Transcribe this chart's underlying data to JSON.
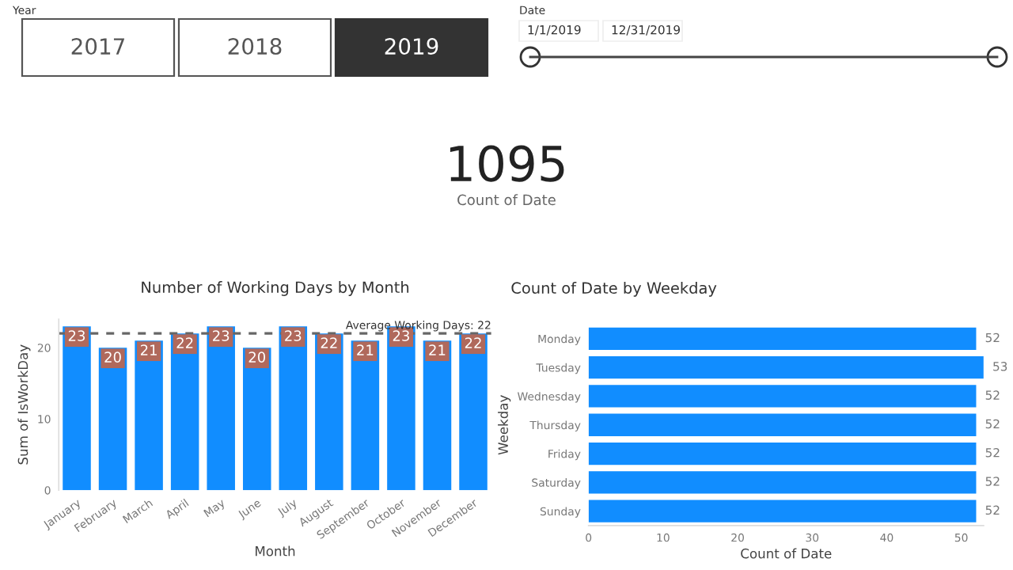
{
  "chart_data": [
    {
      "type": "other",
      "annotations": [
        "Year",
        "2017",
        "2018",
        "2019",
        "Date",
        "1/1/2019",
        "12/31/2019",
        "1095",
        "Count of Date"
      ]
    },
    {
      "type": "bar",
      "title": "Number of Working Days by Month",
      "xlabel": "Month",
      "ylabel": "Sum of IsWorkDay",
      "categories": [
        "January",
        "February",
        "March",
        "April",
        "May",
        "June",
        "July",
        "August",
        "September",
        "October",
        "November",
        "December"
      ],
      "values": [
        23,
        20,
        21,
        22,
        23,
        20,
        23,
        22,
        21,
        23,
        21,
        22
      ],
      "color": "#118dff",
      "ylim": [
        0,
        24
      ],
      "yticks": [
        0,
        10,
        20
      ],
      "data_labels": true,
      "grid": false,
      "ref_lines": [
        {
          "axis": "y",
          "value": 22,
          "label": "Average Working Days: 22",
          "color": "#666666",
          "line_style": "dashed"
        }
      ]
    },
    {
      "type": "bar",
      "orientation": "horizontal",
      "title": "Count of Date by Weekday",
      "xlabel": "Count of Date",
      "ylabel": "Weekday",
      "categories": [
        "Monday",
        "Tuesday",
        "Wednesday",
        "Thursday",
        "Friday",
        "Saturday",
        "Sunday"
      ],
      "values": [
        52,
        53,
        52,
        52,
        52,
        52,
        52
      ],
      "color": "#118dff",
      "xlim": [
        0,
        53
      ],
      "xticks": [
        0,
        10,
        20,
        30,
        40,
        50
      ],
      "data_labels": true,
      "grid": false
    }
  ]
}
